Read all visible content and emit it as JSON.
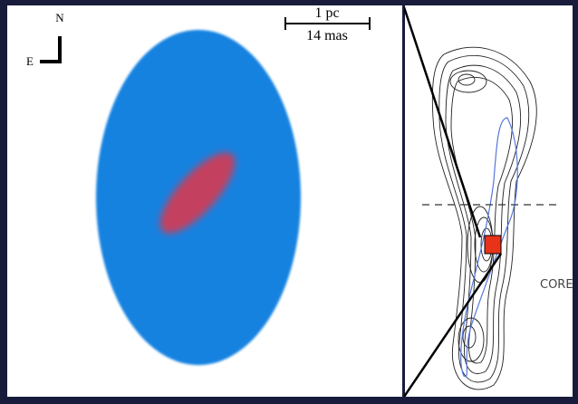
{
  "compass": {
    "north": "N",
    "east": "E"
  },
  "scale_bar": {
    "physical": "1 pc",
    "angular": "14 mas"
  },
  "labels": {
    "core": "CORE"
  }
}
